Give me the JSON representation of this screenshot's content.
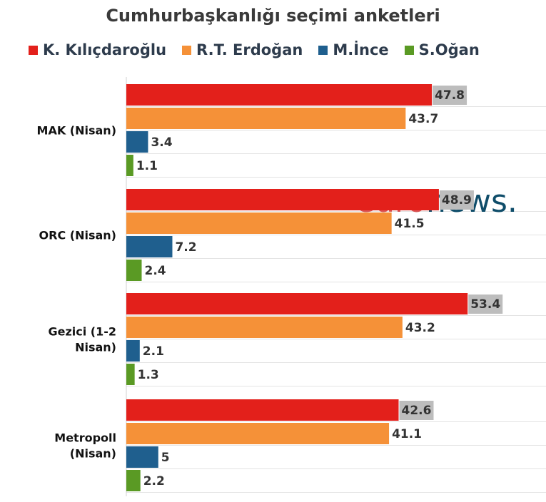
{
  "chart_data": {
    "type": "bar",
    "orientation": "horizontal",
    "title": "Cumhurbaşkanlığı seçimi anketleri",
    "categories": [
      [
        "MAK (Nisan)"
      ],
      [
        "ORC (Nisan)"
      ],
      [
        "Gezici (1-2",
        "Nisan)"
      ],
      [
        "Metropoll",
        "(Nisan)"
      ]
    ],
    "series": [
      {
        "name": "K. Kılıçdaroğlu",
        "color": "#e3201b",
        "values": [
          47.8,
          48.9,
          53.4,
          42.6
        ]
      },
      {
        "name": "R.T. Erdoğan",
        "color": "#f59138",
        "values": [
          43.7,
          41.5,
          43.2,
          41.1
        ]
      },
      {
        "name": "M.İnce",
        "color": "#1f5f8e",
        "values": [
          3.4,
          7.2,
          2.1,
          5
        ]
      },
      {
        "name": "S.Oğan",
        "color": "#5a9a24",
        "values": [
          1.1,
          2.4,
          1.3,
          2.2
        ]
      }
    ],
    "xlim": [
      0,
      60
    ],
    "highlight_label_series": "K. Kılıçdaroğlu",
    "highlight_label_bg": "#bdbdbd",
    "legend_position": "top",
    "grid": true,
    "watermark": {
      "text_part1": "euro",
      "text_part2": "news.",
      "color_part1": "#d33a3a",
      "color_part2": "#0f4d6a"
    }
  }
}
